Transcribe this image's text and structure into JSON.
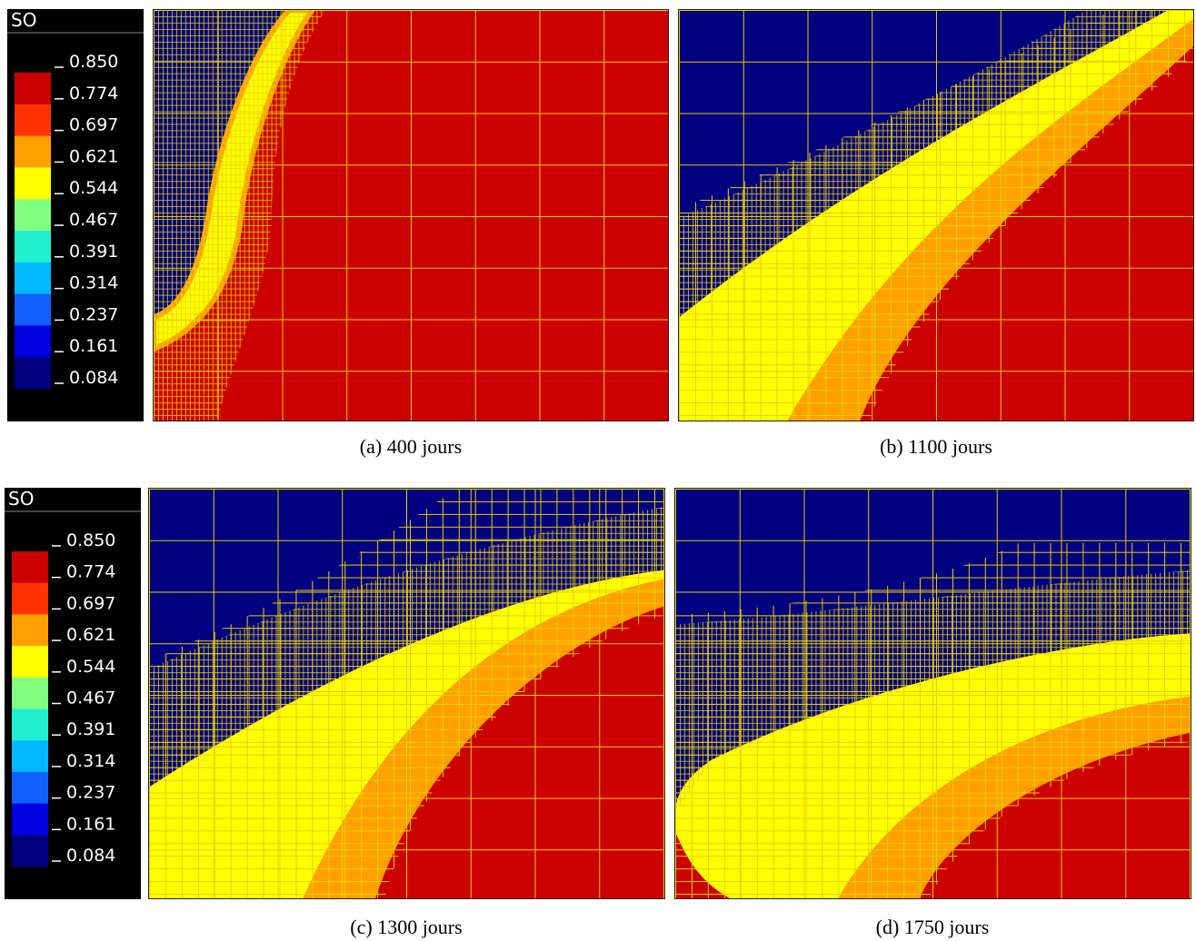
{
  "colorbars": [
    {
      "title": "SO",
      "labels": [
        "0.850",
        "0.774",
        "0.697",
        "0.621",
        "0.544",
        "0.467",
        "0.391",
        "0.314",
        "0.237",
        "0.161",
        "0.084"
      ]
    },
    {
      "title": "SO",
      "labels": [
        "0.850",
        "0.774",
        "0.697",
        "0.621",
        "0.544",
        "0.467",
        "0.391",
        "0.314",
        "0.237",
        "0.161",
        "0.084"
      ]
    }
  ],
  "captions": [
    "(a) 400 jours",
    "(b) 1100 jours",
    "(c) 1300 jours",
    "(d) 1750 jours"
  ]
}
